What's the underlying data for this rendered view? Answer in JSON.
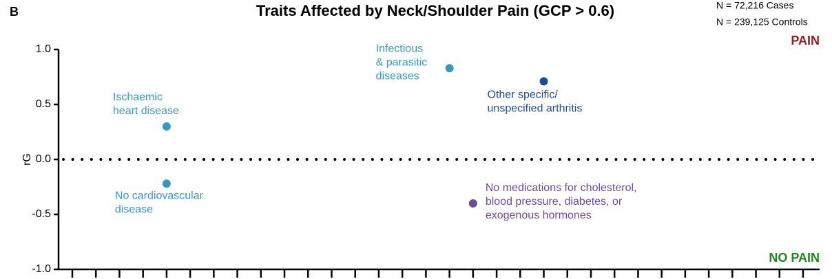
{
  "chart_data": {
    "type": "scatter",
    "panel": "B",
    "title": "Traits Affected by Neck/Shoulder Pain (GCP > 0.6)",
    "notes": [
      "N = 72,216 Cases",
      "N = 239,125 Controls"
    ],
    "ylabel": "rG",
    "top_label": "PAIN",
    "bottom_label": "NO PAIN",
    "ylim": [
      -1.0,
      1.0
    ],
    "yticks": [
      {
        "value": -1.0,
        "label": "-1.0"
      },
      {
        "value": -0.5,
        "label": "-0.5"
      },
      {
        "value": 0.0,
        "label": "0.0"
      },
      {
        "value": 0.5,
        "label": "0.5"
      },
      {
        "value": 1.0,
        "label": "1.0"
      }
    ],
    "reference_line": 0,
    "categories": [
      null,
      null,
      null,
      null,
      null,
      null,
      null,
      null,
      null,
      null,
      null,
      null,
      null,
      null,
      null,
      null,
      null,
      null,
      null,
      null,
      null,
      null,
      null,
      null,
      null,
      null,
      null,
      null,
      null,
      null,
      null,
      null
    ],
    "points": [
      {
        "category": 4,
        "value": 0.3,
        "color": "#3a98b9",
        "label": [
          "Ischaemic",
          "heart disease"
        ]
      },
      {
        "category": 4,
        "value": -0.22,
        "color": "#3a98b9",
        "label": [
          "No cardiovascular",
          "disease"
        ]
      },
      {
        "category": 16,
        "value": 0.83,
        "color": "#3a98b9",
        "label": [
          "Infectious",
          "& parasitic",
          "diseases"
        ]
      },
      {
        "category": 17,
        "value": -0.4,
        "color": "#6a4c9c",
        "label": [
          "No medications for cholesterol,",
          "blood pressure, diabetes, or",
          "exogenous hormones"
        ]
      },
      {
        "category": 20,
        "value": 0.71,
        "color": "#1f4e8c",
        "label": [
          "Other specific/",
          "unspecified arthritis"
        ]
      }
    ]
  }
}
